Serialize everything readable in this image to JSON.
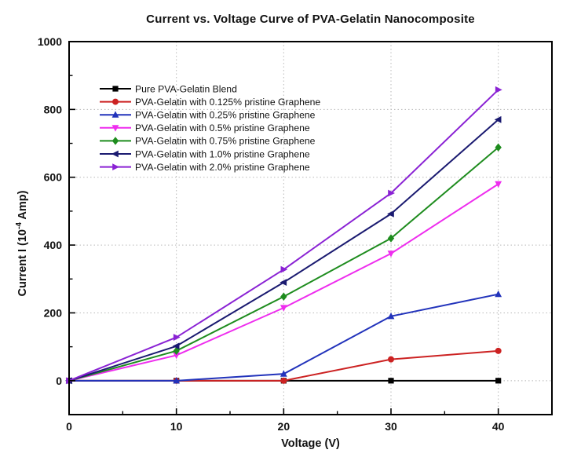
{
  "chart_data": {
    "type": "line",
    "title": "Current vs. Voltage Curve of PVA-Gelatin Nanocomposite",
    "xlabel": "Voltage (V)",
    "ylabel": {
      "prefix": "Current I (10",
      "superscript": "-4",
      "suffix": " Amp)"
    },
    "x": [
      0,
      10,
      20,
      30,
      40
    ],
    "series": [
      {
        "name": "Pure PVA-Gelatin Blend",
        "color": "#000000",
        "marker": "square",
        "values": [
          0,
          0,
          0,
          0,
          0
        ]
      },
      {
        "name": "PVA-Gelatin with 0.125% pristine Graphene",
        "color": "#cc2222",
        "marker": "circle",
        "values": [
          0,
          0,
          0,
          63,
          88
        ]
      },
      {
        "name": "PVA-Gelatin with 0.25% pristine Graphene",
        "color": "#2233bb",
        "marker": "triangle-up",
        "values": [
          0,
          0,
          20,
          190,
          255
        ]
      },
      {
        "name": "PVA-Gelatin with 0.5% pristine Graphene",
        "color": "#ee2dee",
        "marker": "triangle-down",
        "values": [
          0,
          75,
          215,
          375,
          580
        ]
      },
      {
        "name": "PVA-Gelatin with 0.75% pristine Graphene",
        "color": "#1e8c1e",
        "marker": "diamond",
        "values": [
          0,
          88,
          248,
          420,
          688
        ]
      },
      {
        "name": "PVA-Gelatin with 1.0% pristine Graphene",
        "color": "#1a1a70",
        "marker": "triangle-left",
        "values": [
          0,
          102,
          290,
          492,
          770
        ]
      },
      {
        "name": "PVA-Gelatin with 2.0% pristine Graphene",
        "color": "#8a22d4",
        "marker": "triangle-right",
        "values": [
          0,
          128,
          328,
          553,
          858
        ]
      }
    ],
    "axes": {
      "xlim": [
        0,
        45
      ],
      "ylim": [
        -100,
        1000
      ],
      "x_major_ticks": [
        0,
        10,
        20,
        30,
        40
      ],
      "x_minor_ticks": [
        5,
        15,
        25,
        35
      ],
      "y_major_ticks": [
        0,
        200,
        400,
        600,
        800,
        1000
      ],
      "y_minor_ticks": [
        100,
        300,
        500,
        700,
        900
      ],
      "x_gridlines": [
        10,
        20,
        30,
        40
      ],
      "y_gridlines": [
        0,
        200,
        400,
        600,
        800
      ],
      "grid_style": "dotted",
      "grid_color": "#b8b8b8",
      "frame_color": "#000000",
      "tick_label_color": "#111111"
    },
    "legend": {
      "position": "upper-left",
      "frame": false
    }
  }
}
